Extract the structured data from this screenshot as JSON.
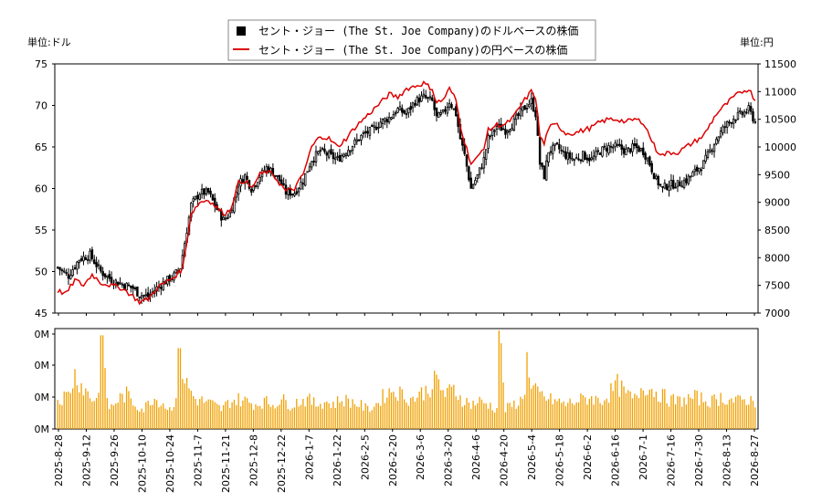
{
  "chart_data": {
    "type": "candlestick",
    "legend": {
      "usd_label": "セント・ジョー (The St. Joe Company)のドルベースの株価",
      "jpy_label": "セント・ジョー (The St. Joe Company)の円ベースの株価",
      "placement": "top-center"
    },
    "left_unit": "単位:ドル",
    "right_unit": "単位:円",
    "price_axis_usd": {
      "min": 45,
      "max": 75,
      "ticks": [
        45,
        50,
        55,
        60,
        65,
        70,
        75
      ]
    },
    "price_axis_jpy": {
      "min": 7000,
      "max": 11500,
      "ticks": [
        7000,
        7500,
        8000,
        8500,
        9000,
        9500,
        10000,
        10500,
        11000,
        11500
      ]
    },
    "volume_axis": {
      "tick_labels": [
        "0M",
        "0M",
        "0M",
        "0M"
      ]
    },
    "x_tick_labels": [
      "2025-8-28",
      "2025-9-12",
      "2025-9-26",
      "2025-10-10",
      "2025-10-24",
      "2025-11-7",
      "2025-11-21",
      "2025-12-8",
      "2025-12-22",
      "2026-1-7",
      "2026-1-22",
      "2026-2-5",
      "2026-2-20",
      "2026-3-6",
      "2026-3-20",
      "2026-4-6",
      "2026-4-20",
      "2026-5-4",
      "2026-5-18",
      "2026-6-2",
      "2026-6-16",
      "2026-7-1",
      "2026-7-16",
      "2026-7-30",
      "2026-8-13",
      "2026-8-27"
    ],
    "usd_close_anchors": [
      [
        0,
        50.5
      ],
      [
        5,
        49.5
      ],
      [
        10,
        51.5
      ],
      [
        15,
        52.0
      ],
      [
        20,
        50.0
      ],
      [
        25,
        49.0
      ],
      [
        30,
        48.5
      ],
      [
        35,
        48.0
      ],
      [
        38,
        47.2
      ],
      [
        42,
        47.0
      ],
      [
        46,
        48.0
      ],
      [
        50,
        48.8
      ],
      [
        54,
        49.5
      ],
      [
        57,
        50.5
      ],
      [
        62,
        58.0
      ],
      [
        66,
        59.5
      ],
      [
        70,
        59.5
      ],
      [
        74,
        57.5
      ],
      [
        77,
        56.2
      ],
      [
        80,
        57.0
      ],
      [
        84,
        60.5
      ],
      [
        87,
        61.5
      ],
      [
        90,
        60.0
      ],
      [
        94,
        61.5
      ],
      [
        97,
        62.5
      ],
      [
        100,
        62.0
      ],
      [
        103,
        61.0
      ],
      [
        106,
        59.5
      ],
      [
        110,
        59.5
      ],
      [
        114,
        61.0
      ],
      [
        118,
        63.5
      ],
      [
        122,
        64.5
      ],
      [
        126,
        64.0
      ],
      [
        130,
        63.5
      ],
      [
        134,
        64.5
      ],
      [
        138,
        65.5
      ],
      [
        142,
        66.5
      ],
      [
        146,
        67.0
      ],
      [
        150,
        68.0
      ],
      [
        154,
        68.5
      ],
      [
        158,
        69.5
      ],
      [
        162,
        69.0
      ],
      [
        166,
        70.5
      ],
      [
        170,
        71.0
      ],
      [
        174,
        70.5
      ],
      [
        176,
        68.5
      ],
      [
        179,
        69.0
      ],
      [
        182,
        70.5
      ],
      [
        185,
        69.0
      ],
      [
        187,
        66.0
      ],
      [
        189,
        64.0
      ],
      [
        192,
        60.0
      ],
      [
        195,
        61.5
      ],
      [
        198,
        63.5
      ],
      [
        200,
        66.0
      ],
      [
        204,
        67.5
      ],
      [
        208,
        67.0
      ],
      [
        212,
        68.0
      ],
      [
        216,
        69.5
      ],
      [
        220,
        70.5
      ],
      [
        222,
        69.0
      ],
      [
        224,
        63.0
      ],
      [
        226,
        61.5
      ],
      [
        228,
        64.5
      ],
      [
        232,
        65.0
      ],
      [
        236,
        64.0
      ],
      [
        240,
        63.5
      ],
      [
        244,
        64.0
      ],
      [
        248,
        63.5
      ],
      [
        252,
        64.5
      ],
      [
        256,
        65.0
      ],
      [
        260,
        65.0
      ],
      [
        264,
        64.5
      ],
      [
        268,
        65.0
      ],
      [
        272,
        64.5
      ],
      [
        275,
        63.0
      ],
      [
        278,
        61.0
      ],
      [
        281,
        60.0
      ],
      [
        284,
        60.5
      ],
      [
        288,
        60.5
      ],
      [
        292,
        61.0
      ],
      [
        296,
        62.0
      ],
      [
        300,
        63.0
      ],
      [
        303,
        64.5
      ],
      [
        306,
        66.0
      ],
      [
        310,
        67.5
      ],
      [
        314,
        68.5
      ],
      [
        318,
        69.0
      ],
      [
        321,
        69.5
      ],
      [
        324,
        68.0
      ]
    ],
    "jpy_close_anchors": [
      [
        0,
        7400
      ],
      [
        4,
        7350
      ],
      [
        8,
        7600
      ],
      [
        12,
        7500
      ],
      [
        16,
        7700
      ],
      [
        20,
        7550
      ],
      [
        25,
        7500
      ],
      [
        30,
        7450
      ],
      [
        35,
        7300
      ],
      [
        38,
        7200
      ],
      [
        42,
        7250
      ],
      [
        46,
        7450
      ],
      [
        50,
        7550
      ],
      [
        54,
        7650
      ],
      [
        58,
        7800
      ],
      [
        62,
        8800
      ],
      [
        66,
        9000
      ],
      [
        70,
        9050
      ],
      [
        74,
        8900
      ],
      [
        77,
        8800
      ],
      [
        80,
        8850
      ],
      [
        84,
        9350
      ],
      [
        87,
        9400
      ],
      [
        90,
        9250
      ],
      [
        94,
        9500
      ],
      [
        97,
        9550
      ],
      [
        100,
        9500
      ],
      [
        103,
        9350
      ],
      [
        106,
        9200
      ],
      [
        110,
        9250
      ],
      [
        114,
        9500
      ],
      [
        118,
        10000
      ],
      [
        122,
        10200
      ],
      [
        126,
        10150
      ],
      [
        130,
        10000
      ],
      [
        134,
        10150
      ],
      [
        138,
        10350
      ],
      [
        142,
        10500
      ],
      [
        146,
        10650
      ],
      [
        150,
        10800
      ],
      [
        154,
        10950
      ],
      [
        158,
        10900
      ],
      [
        162,
        11050
      ],
      [
        166,
        11100
      ],
      [
        170,
        11150
      ],
      [
        174,
        11050
      ],
      [
        176,
        10800
      ],
      [
        179,
        10850
      ],
      [
        182,
        11050
      ],
      [
        185,
        10850
      ],
      [
        187,
        10400
      ],
      [
        189,
        10100
      ],
      [
        192,
        9700
      ],
      [
        195,
        9800
      ],
      [
        198,
        10000
      ],
      [
        200,
        10300
      ],
      [
        204,
        10400
      ],
      [
        208,
        10400
      ],
      [
        212,
        10550
      ],
      [
        216,
        10800
      ],
      [
        220,
        11000
      ],
      [
        222,
        10900
      ],
      [
        224,
        10200
      ],
      [
        226,
        10050
      ],
      [
        228,
        10350
      ],
      [
        232,
        10400
      ],
      [
        236,
        10250
      ],
      [
        240,
        10250
      ],
      [
        244,
        10300
      ],
      [
        248,
        10350
      ],
      [
        252,
        10450
      ],
      [
        256,
        10500
      ],
      [
        260,
        10500
      ],
      [
        264,
        10450
      ],
      [
        268,
        10500
      ],
      [
        272,
        10450
      ],
      [
        275,
        10200
      ],
      [
        278,
        9950
      ],
      [
        281,
        9850
      ],
      [
        284,
        9900
      ],
      [
        288,
        9900
      ],
      [
        292,
        10000
      ],
      [
        296,
        10100
      ],
      [
        300,
        10200
      ],
      [
        303,
        10400
      ],
      [
        306,
        10600
      ],
      [
        310,
        10750
      ],
      [
        314,
        10900
      ],
      [
        318,
        11000
      ],
      [
        321,
        11050
      ],
      [
        324,
        10850
      ]
    ],
    "volume_anchors": [
      [
        0,
        0.3
      ],
      [
        5,
        0.35
      ],
      [
        8,
        0.55
      ],
      [
        12,
        0.42
      ],
      [
        16,
        0.3
      ],
      [
        20,
        0.35
      ],
      [
        20.5,
        0.72
      ],
      [
        24,
        0.2
      ],
      [
        28,
        0.3
      ],
      [
        32,
        0.35
      ],
      [
        36,
        0.25
      ],
      [
        40,
        0.2
      ],
      [
        44,
        0.32
      ],
      [
        48,
        0.28
      ],
      [
        52,
        0.2
      ],
      [
        56,
        0.35
      ],
      [
        56.5,
        0.65
      ],
      [
        60,
        0.45
      ],
      [
        64,
        0.3
      ],
      [
        68,
        0.28
      ],
      [
        72,
        0.25
      ],
      [
        76,
        0.2
      ],
      [
        80,
        0.28
      ],
      [
        84,
        0.3
      ],
      [
        88,
        0.28
      ],
      [
        92,
        0.25
      ],
      [
        96,
        0.28
      ],
      [
        100,
        0.25
      ],
      [
        104,
        0.3
      ],
      [
        108,
        0.25
      ],
      [
        112,
        0.28
      ],
      [
        116,
        0.3
      ],
      [
        120,
        0.25
      ],
      [
        124,
        0.28
      ],
      [
        128,
        0.25
      ],
      [
        132,
        0.3
      ],
      [
        136,
        0.28
      ],
      [
        140,
        0.25
      ],
      [
        144,
        0.2
      ],
      [
        148,
        0.25
      ],
      [
        152,
        0.35
      ],
      [
        156,
        0.4
      ],
      [
        160,
        0.35
      ],
      [
        164,
        0.3
      ],
      [
        168,
        0.35
      ],
      [
        172,
        0.4
      ],
      [
        176,
        0.5
      ],
      [
        180,
        0.35
      ],
      [
        184,
        0.4
      ],
      [
        188,
        0.3
      ],
      [
        192,
        0.25
      ],
      [
        196,
        0.28
      ],
      [
        200,
        0.25
      ],
      [
        204,
        0.2
      ],
      [
        205,
        1.0
      ],
      [
        208,
        0.2
      ],
      [
        212,
        0.25
      ],
      [
        216,
        0.3
      ],
      [
        218,
        0.55
      ],
      [
        220,
        0.4
      ],
      [
        224,
        0.35
      ],
      [
        228,
        0.3
      ],
      [
        232,
        0.28
      ],
      [
        236,
        0.25
      ],
      [
        240,
        0.28
      ],
      [
        244,
        0.3
      ],
      [
        248,
        0.32
      ],
      [
        252,
        0.28
      ],
      [
        256,
        0.35
      ],
      [
        260,
        0.45
      ],
      [
        264,
        0.35
      ],
      [
        268,
        0.3
      ],
      [
        272,
        0.45
      ],
      [
        276,
        0.4
      ],
      [
        280,
        0.35
      ],
      [
        284,
        0.3
      ],
      [
        288,
        0.28
      ],
      [
        292,
        0.3
      ],
      [
        296,
        0.32
      ],
      [
        300,
        0.3
      ],
      [
        304,
        0.28
      ],
      [
        308,
        0.32
      ],
      [
        312,
        0.3
      ],
      [
        316,
        0.28
      ],
      [
        320,
        0.3
      ],
      [
        324,
        0.28
      ]
    ]
  }
}
